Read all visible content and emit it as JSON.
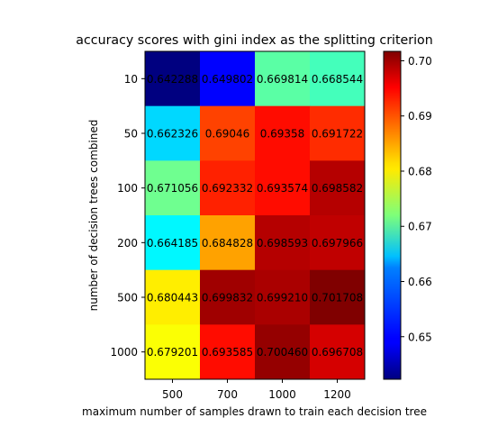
{
  "chart_data": {
    "type": "heatmap",
    "title": "accuracy scores with gini index as the splitting criterion",
    "xlabel": "maximum number of samples drawn to train each decision tree",
    "ylabel": "number of decision trees combined",
    "x_categories": [
      "500",
      "700",
      "1000",
      "1200"
    ],
    "y_categories": [
      "10",
      "50",
      "100",
      "200",
      "500",
      "1000"
    ],
    "values": [
      [
        0.642288,
        0.649802,
        0.669814,
        0.668544
      ],
      [
        0.662326,
        0.69046,
        0.69358,
        0.691722
      ],
      [
        0.671056,
        0.692332,
        0.693574,
        0.698582
      ],
      [
        0.664185,
        0.684828,
        0.698593,
        0.697966
      ],
      [
        0.680443,
        0.699832,
        0.69921,
        0.701708
      ],
      [
        0.679201,
        0.693585,
        0.70046,
        0.696708
      ]
    ],
    "cell_labels": [
      [
        "0.642288",
        "0.649802",
        "0.669814",
        "0.668544"
      ],
      [
        "0.662326",
        "0.69046",
        "0.69358",
        "0.691722"
      ],
      [
        "0.671056",
        "0.692332",
        "0.693574",
        "0.698582"
      ],
      [
        "0.664185",
        "0.684828",
        "0.698593",
        "0.697966"
      ],
      [
        "0.680443",
        "0.699832",
        "0.699210",
        "0.701708"
      ],
      [
        "0.679201",
        "0.693585",
        "0.700460",
        "0.696708"
      ]
    ],
    "colormap": "jet",
    "color_range": [
      0.642288,
      0.701708
    ],
    "colorbar_ticks": [
      "0.65",
      "0.66",
      "0.67",
      "0.68",
      "0.69",
      "0.70"
    ],
    "grid": false,
    "legend": "colorbar right"
  }
}
